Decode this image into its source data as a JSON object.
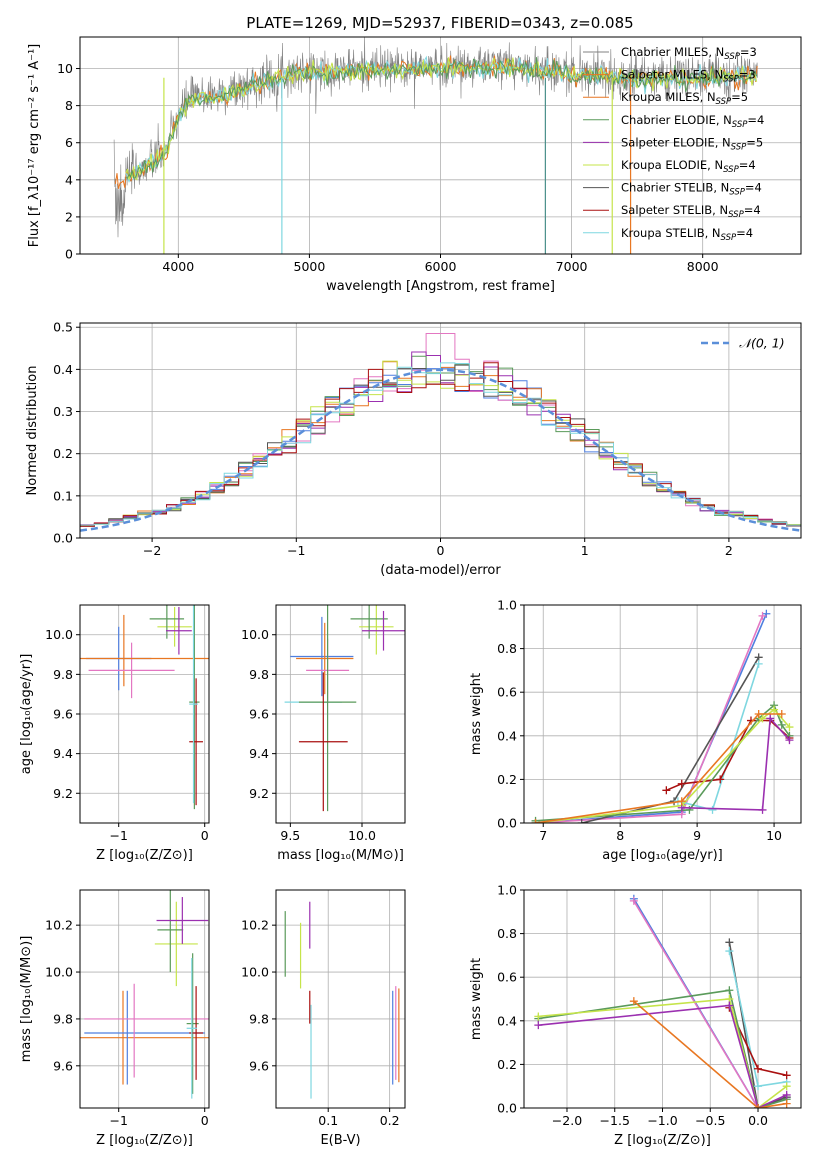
{
  "title": "PLATE=1269, MJD=52937, FIBERID=0343, z=0.085",
  "colors": {
    "gray": "#808080",
    "orange": "#e87722",
    "teal": "#4a8f8a",
    "pink": "#e377c2",
    "navy": "#2d5fa6",
    "purple": "#9b30b0",
    "yellowgreen": "#c5e44a",
    "darkgray": "#555555",
    "darkred": "#aa1010",
    "cyan": "#7fd7e0",
    "blue": "#4f7fdf",
    "green": "#5a9a5a",
    "grid": "#b0b0b0"
  },
  "chart_data": [
    {
      "id": "spectrum",
      "type": "line",
      "xlabel": "wavelength [Angstrom, rest frame]",
      "ylabel": "Flux [f_λ10⁻¹⁷ erg cm⁻² s⁻¹ A⁻¹]",
      "xlim": [
        3250,
        8750
      ],
      "ylim": [
        0,
        11.7
      ],
      "xticks": [
        4000,
        5000,
        6000,
        7000,
        8000
      ],
      "yticks": [
        0,
        2,
        4,
        6,
        8,
        10
      ],
      "data_curve": {
        "x": [
          3500,
          3700,
          3900,
          4000,
          4100,
          4300,
          4500,
          4800,
          5000,
          5500,
          6000,
          6500,
          7000,
          7500,
          8000,
          8400
        ],
        "y": [
          4.0,
          4.5,
          5.5,
          7.5,
          8.5,
          8.6,
          9.0,
          9.7,
          9.9,
          10.0,
          10.1,
          10.2,
          9.8,
          9.5,
          9.6,
          9.7
        ]
      },
      "legend": [
        {
          "label": "Chabrier MILES, N",
          "sub": "SSP",
          "tail": "=3",
          "color": "#808080"
        },
        {
          "label": "Salpeter MILES, N",
          "sub": "SSP",
          "tail": "=3",
          "color": "#e87722"
        },
        {
          "label": "Kroupa MILES, N",
          "sub": "SSP",
          "tail": "=5",
          "color": "#e87722"
        },
        {
          "label": "Chabrier ELODIE, N",
          "sub": "SSP",
          "tail": "=4",
          "color": "#5a9a5a"
        },
        {
          "label": "Salpeter ELODIE, N",
          "sub": "SSP",
          "tail": "=5",
          "color": "#9b30b0"
        },
        {
          "label": "Kroupa ELODIE, N",
          "sub": "SSP",
          "tail": "=4",
          "color": "#c5e44a"
        },
        {
          "label": "Chabrier STELIB, N",
          "sub": "SSP",
          "tail": "=4",
          "color": "#555555"
        },
        {
          "label": "Salpeter STELIB, N",
          "sub": "SSP",
          "tail": "=4",
          "color": "#aa1010"
        },
        {
          "label": "Kroupa STELIB, N",
          "sub": "SSP",
          "tail": "=4",
          "color": "#7fd7e0"
        }
      ]
    },
    {
      "id": "residuals",
      "type": "histogram",
      "xlabel": "(data-model)/error",
      "ylabel": "Normed distribution",
      "xlim": [
        -2.5,
        2.5
      ],
      "ylim": [
        0,
        0.51
      ],
      "xticks": [
        -2,
        -1,
        0,
        1,
        2
      ],
      "yticks": [
        0.0,
        0.1,
        0.2,
        0.3,
        0.4,
        0.5
      ],
      "bin_width": 0.1,
      "legend_label": "𝒩(0, 1)",
      "gaussian": {
        "mu": 0,
        "sigma": 1
      }
    },
    {
      "id": "z_age",
      "type": "errorbar",
      "xlabel": "Z [log₁₀(Z/Z⊙)]",
      "ylabel": "age  [log₁₀(age/yr)]",
      "xlim": [
        -1.45,
        0.05
      ],
      "ylim": [
        9.05,
        10.15
      ],
      "xticks": [
        -1,
        0
      ],
      "yticks": [
        9.2,
        9.4,
        9.6,
        9.8,
        10.0
      ],
      "points": [
        {
          "x": -0.94,
          "y": 9.92,
          "xerr": 0.0,
          "yerr": 0.18,
          "color": "#e87722"
        },
        {
          "x": -1.0,
          "y": 9.88,
          "xerr": 0.38,
          "yerr": 0.16,
          "color": "#4f7fdf"
        },
        {
          "x": -0.85,
          "y": 9.82,
          "xerr": 0.5,
          "yerr": 0.14,
          "color": "#e377c2"
        },
        {
          "x": -0.56,
          "y": 9.88,
          "xerr": 0.9,
          "yerr": 0.0,
          "color": "#e87722"
        },
        {
          "x": -0.35,
          "y": 10.04,
          "xerr": 0.2,
          "yerr": 0.1,
          "color": "#c5e44a"
        },
        {
          "x": -0.44,
          "y": 10.08,
          "xerr": 0.2,
          "yerr": 0.1,
          "color": "#5a9a5a"
        },
        {
          "x": -0.3,
          "y": 10.02,
          "xerr": 0.15,
          "yerr": 0.12,
          "color": "#9b30b0"
        },
        {
          "x": -0.12,
          "y": 9.66,
          "xerr": 0.06,
          "yerr": 0.54,
          "color": "#5a9a5a"
        },
        {
          "x": -0.1,
          "y": 9.46,
          "xerr": 0.08,
          "yerr": 0.32,
          "color": "#aa1010"
        },
        {
          "x": -0.13,
          "y": 9.65,
          "xerr": 0.05,
          "yerr": 0.5,
          "color": "#7fd7e0"
        }
      ]
    },
    {
      "id": "mass_age",
      "type": "errorbar",
      "xlabel": "mass [log₁₀(M/M⊙)]",
      "ylabel": "",
      "xlim": [
        9.4,
        10.3
      ],
      "ylim": [
        9.05,
        10.15
      ],
      "xticks": [
        9.5,
        10.0
      ],
      "yticks": [
        9.2,
        9.4,
        9.6,
        9.8,
        10.0
      ],
      "points": [
        {
          "x": 9.72,
          "y": 9.89,
          "xerr": 0.22,
          "yerr": 0.2,
          "color": "#4f7fdf"
        },
        {
          "x": 9.74,
          "y": 9.88,
          "xerr": 0.2,
          "yerr": 0.18,
          "color": "#e87722"
        },
        {
          "x": 9.76,
          "y": 9.82,
          "xerr": 0.15,
          "yerr": 0.16,
          "color": "#e377c2"
        },
        {
          "x": 9.66,
          "y": 9.66,
          "xerr": 0.2,
          "yerr": 0.0,
          "color": "#7fd7e0"
        },
        {
          "x": 9.76,
          "y": 9.66,
          "xerr": 0.2,
          "yerr": 0.55,
          "color": "#5a9a5a"
        },
        {
          "x": 9.73,
          "y": 9.46,
          "xerr": 0.17,
          "yerr": 0.35,
          "color": "#aa1010"
        },
        {
          "x": 10.1,
          "y": 10.04,
          "xerr": 0.12,
          "yerr": 0.14,
          "color": "#c5e44a"
        },
        {
          "x": 10.05,
          "y": 10.08,
          "xerr": 0.13,
          "yerr": 0.1,
          "color": "#5a9a5a"
        },
        {
          "x": 10.15,
          "y": 10.02,
          "xerr": 0.15,
          "yerr": 0.1,
          "color": "#9b30b0"
        }
      ]
    },
    {
      "id": "age_weight",
      "type": "line",
      "xlabel": "age  [log₁₀(age/yr)]",
      "ylabel": "mass weight",
      "xlim": [
        6.75,
        10.35
      ],
      "ylim": [
        0,
        1.0
      ],
      "xticks": [
        7,
        8,
        9,
        10
      ],
      "yticks": [
        0.0,
        0.2,
        0.4,
        0.6,
        0.8,
        1.0
      ],
      "series": [
        {
          "x": [
            6.9,
            8.8,
            9.9
          ],
          "y": [
            0.0,
            0.05,
            0.96
          ],
          "color": "#4f7fdf"
        },
        {
          "x": [
            6.9,
            8.8,
            9.85
          ],
          "y": [
            0.0,
            0.04,
            0.95
          ],
          "color": "#e377c2"
        },
        {
          "x": [
            7.5,
            8.7,
            9.8
          ],
          "y": [
            0.0,
            0.1,
            0.76
          ],
          "color": "#555555"
        },
        {
          "x": [
            8.75,
            9.2,
            9.8
          ],
          "y": [
            0.1,
            0.06,
            0.73
          ],
          "color": "#7fd7e0"
        },
        {
          "x": [
            8.6,
            8.8,
            9.3,
            9.7,
            9.95,
            10.2
          ],
          "y": [
            0.15,
            0.18,
            0.2,
            0.47,
            0.47,
            0.39
          ],
          "color": "#aa1010"
        },
        {
          "x": [
            6.9,
            8.9,
            9.8,
            10.0,
            10.1,
            10.2
          ],
          "y": [
            0.01,
            0.06,
            0.48,
            0.54,
            0.45,
            0.4
          ],
          "color": "#5a9a5a"
        },
        {
          "x": [
            6.9,
            8.8,
            9.85,
            10.0,
            10.2
          ],
          "y": [
            0.0,
            0.08,
            0.48,
            0.52,
            0.44
          ],
          "color": "#c5e44a"
        },
        {
          "x": [
            8.8,
            9.85,
            9.95,
            10.2
          ],
          "y": [
            0.07,
            0.06,
            0.48,
            0.38
          ],
          "color": "#9b30b0"
        },
        {
          "x": [
            6.9,
            8.8,
            9.8,
            10.1
          ],
          "y": [
            0.0,
            0.1,
            0.5,
            0.5
          ],
          "color": "#e87722"
        }
      ]
    },
    {
      "id": "z_mass",
      "type": "errorbar",
      "xlabel": "Z [log₁₀(Z/Z⊙)]",
      "ylabel": "mass [log₁₀(M/M⊙)]",
      "xlim": [
        -1.45,
        0.05
      ],
      "ylim": [
        9.42,
        10.35
      ],
      "xticks": [
        -1,
        0
      ],
      "yticks": [
        9.6,
        9.8,
        10.0,
        10.2
      ],
      "points": [
        {
          "x": -0.55,
          "y": 9.72,
          "xerr": 0.9,
          "yerr": 0.0,
          "color": "#e87722"
        },
        {
          "x": -0.95,
          "y": 9.72,
          "xerr": 0.0,
          "yerr": 0.2,
          "color": "#e87722"
        },
        {
          "x": -0.7,
          "y": 9.74,
          "xerr": 0.7,
          "yerr": 0.0,
          "color": "#4f7fdf"
        },
        {
          "x": -0.9,
          "y": 9.72,
          "xerr": 0.0,
          "yerr": 0.2,
          "color": "#4f7fdf"
        },
        {
          "x": -0.6,
          "y": 9.8,
          "xerr": 0.8,
          "yerr": 0.0,
          "color": "#e377c2"
        },
        {
          "x": -0.82,
          "y": 9.75,
          "xerr": 0.0,
          "yerr": 0.2,
          "color": "#e377c2"
        },
        {
          "x": -0.33,
          "y": 10.12,
          "xerr": 0.25,
          "yerr": 0.18,
          "color": "#c5e44a"
        },
        {
          "x": -0.4,
          "y": 10.18,
          "xerr": 0.15,
          "yerr": 0.18,
          "color": "#5a9a5a"
        },
        {
          "x": -0.26,
          "y": 10.22,
          "xerr": 0.3,
          "yerr": 0.1,
          "color": "#9b30b0"
        },
        {
          "x": -0.14,
          "y": 9.78,
          "xerr": 0.07,
          "yerr": 0.3,
          "color": "#5a9a5a"
        },
        {
          "x": -0.1,
          "y": 9.74,
          "xerr": 0.08,
          "yerr": 0.2,
          "color": "#aa1010"
        },
        {
          "x": -0.15,
          "y": 9.76,
          "xerr": 0.06,
          "yerr": 0.3,
          "color": "#7fd7e0"
        }
      ]
    },
    {
      "id": "ebv_mass",
      "type": "errorbar",
      "xlabel": "E(B-V)",
      "ylabel": "",
      "xlim": [
        0.015,
        0.225
      ],
      "ylim": [
        9.42,
        10.35
      ],
      "xticks": [
        0.1,
        0.2
      ],
      "yticks": [
        9.6,
        9.8,
        10.0,
        10.2
      ],
      "points": [
        {
          "x": 0.03,
          "y": 10.12,
          "xerr": 0.0,
          "yerr": 0.14,
          "color": "#5a9a5a"
        },
        {
          "x": 0.055,
          "y": 10.07,
          "xerr": 0.0,
          "yerr": 0.14,
          "color": "#c5e44a"
        },
        {
          "x": 0.07,
          "y": 10.2,
          "xerr": 0.0,
          "yerr": 0.1,
          "color": "#9b30b0"
        },
        {
          "x": 0.07,
          "y": 9.85,
          "xerr": 0.0,
          "yerr": 0.07,
          "color": "#aa1010"
        },
        {
          "x": 0.072,
          "y": 9.66,
          "xerr": 0.0,
          "yerr": 0.2,
          "color": "#7fd7e0"
        },
        {
          "x": 0.205,
          "y": 9.72,
          "xerr": 0.0,
          "yerr": 0.2,
          "color": "#4f7fdf"
        },
        {
          "x": 0.21,
          "y": 9.74,
          "xerr": 0.0,
          "yerr": 0.2,
          "color": "#e377c2"
        },
        {
          "x": 0.215,
          "y": 9.73,
          "xerr": 0.0,
          "yerr": 0.2,
          "color": "#e87722"
        }
      ]
    },
    {
      "id": "z_weight",
      "type": "line",
      "xlabel": "Z [log₁₀(Z/Z⊙)]",
      "ylabel": "mass weight",
      "xlim": [
        -2.45,
        0.45
      ],
      "ylim": [
        0,
        1.0
      ],
      "xticks": [
        -2.0,
        -1.5,
        -1.0,
        -0.5,
        0.0
      ],
      "yticks": [
        0.0,
        0.2,
        0.4,
        0.6,
        0.8,
        1.0
      ],
      "series": [
        {
          "x": [
            -1.3,
            0.0,
            0.3
          ],
          "y": [
            0.96,
            0.0,
            0.05
          ],
          "color": "#4f7fdf"
        },
        {
          "x": [
            -1.3,
            0.0,
            0.3
          ],
          "y": [
            0.95,
            0.0,
            0.05
          ],
          "color": "#e377c2"
        },
        {
          "x": [
            -0.3,
            0.0,
            0.3
          ],
          "y": [
            0.76,
            0.0,
            0.05
          ],
          "color": "#555555"
        },
        {
          "x": [
            -0.3,
            0.0,
            0.3
          ],
          "y": [
            0.72,
            0.1,
            0.12
          ],
          "color": "#7fd7e0"
        },
        {
          "x": [
            -0.3,
            0.0,
            0.3
          ],
          "y": [
            0.46,
            0.18,
            0.15
          ],
          "color": "#aa1010"
        },
        {
          "x": [
            -2.3,
            -0.3,
            0.0,
            0.3
          ],
          "y": [
            0.41,
            0.54,
            0.0,
            0.04
          ],
          "color": "#5a9a5a"
        },
        {
          "x": [
            -2.3,
            -0.3,
            0.0,
            0.3
          ],
          "y": [
            0.42,
            0.5,
            0.0,
            0.1
          ],
          "color": "#c5e44a"
        },
        {
          "x": [
            -2.3,
            -0.3,
            0.0,
            0.3
          ],
          "y": [
            0.38,
            0.47,
            0.0,
            0.06
          ],
          "color": "#9b30b0"
        },
        {
          "x": [
            -1.3,
            0.0,
            0.3
          ],
          "y": [
            0.49,
            0.0,
            0.02
          ],
          "color": "#e87722"
        }
      ]
    }
  ]
}
